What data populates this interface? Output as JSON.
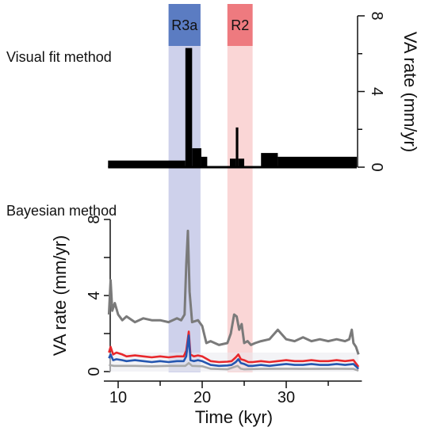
{
  "chart_data": [
    {
      "type": "bar",
      "title": "Visual fit method",
      "ylabel": "VA rate (mm/yr)",
      "ylim": [
        0,
        8
      ],
      "yticks": [
        0,
        4,
        8
      ],
      "x_unit": "kyr",
      "bars": [
        {
          "x0": 8.8,
          "x1": 18.0,
          "value": 0.35
        },
        {
          "x0": 18.0,
          "x1": 18.8,
          "value": 6.3
        },
        {
          "x0": 18.8,
          "x1": 19.9,
          "value": 1.0
        },
        {
          "x0": 19.9,
          "x1": 20.6,
          "value": 0.55
        },
        {
          "x0": 23.3,
          "x1": 24.0,
          "value": 0.45
        },
        {
          "x0": 24.0,
          "x1": 24.3,
          "value": 2.1
        },
        {
          "x0": 24.3,
          "x1": 25.0,
          "value": 0.45
        },
        {
          "x0": 27.0,
          "x1": 29.0,
          "value": 0.75
        },
        {
          "x0": 29.0,
          "x1": 38.4,
          "value": 0.55
        }
      ],
      "baseline_range": [
        8.8,
        38.4
      ],
      "color": "#000000"
    },
    {
      "type": "line",
      "title": "Bayesian method",
      "xlabel": "Time (kyr)",
      "ylabel": "VA rate (mm/yr)",
      "xlim": [
        8.3,
        39.0
      ],
      "ylim": [
        0,
        8
      ],
      "xticks": [
        10,
        20,
        30
      ],
      "xticks_minor": [
        15,
        25,
        35
      ],
      "yticks": [
        0,
        4,
        8
      ],
      "series": [
        {
          "color": "#7a7a7a",
          "x": [
            8.9,
            9.1,
            9.3,
            9.6,
            10,
            10.5,
            11,
            12,
            13,
            14,
            15,
            16,
            17,
            17.5,
            17.9,
            18.1,
            18.3,
            18.5,
            18.8,
            19.5,
            20,
            20.5,
            21,
            22,
            23,
            23.4,
            23.8,
            24.1,
            24.4,
            24.7,
            25,
            25.4,
            25.8,
            26.3,
            27,
            28,
            29,
            30,
            31,
            32,
            33,
            34,
            35,
            36,
            37,
            37.5,
            37.8,
            38.0,
            38.3,
            38.6
          ],
          "y": [
            3.0,
            4.8,
            3.2,
            3.6,
            3.0,
            2.7,
            2.9,
            2.6,
            2.8,
            2.7,
            2.7,
            2.6,
            2.8,
            2.7,
            3.0,
            5.6,
            7.4,
            4.2,
            2.6,
            2.7,
            2.4,
            1.5,
            1.6,
            1.4,
            1.5,
            2.0,
            3.0,
            2.9,
            2.2,
            2.5,
            1.5,
            1.6,
            1.4,
            1.5,
            1.6,
            1.7,
            2.2,
            1.7,
            1.6,
            1.8,
            1.6,
            1.7,
            1.6,
            1.7,
            1.6,
            1.7,
            2.2,
            1.5,
            1.3,
            0.9
          ]
        },
        {
          "color": "#e8282c",
          "x": [
            8.9,
            9.1,
            9.4,
            9.8,
            10.5,
            11,
            12,
            13,
            14,
            15,
            16,
            17,
            17.8,
            18.1,
            18.4,
            18.6,
            19,
            19.5,
            20,
            21,
            22,
            23,
            23.5,
            24.0,
            24.3,
            24.6,
            25,
            25.5,
            26,
            27,
            28,
            29,
            30,
            31,
            32,
            33,
            34,
            35,
            36,
            37,
            38,
            38.6
          ],
          "y": [
            1.0,
            1.3,
            0.9,
            1.0,
            0.9,
            0.8,
            0.85,
            0.8,
            0.75,
            0.8,
            0.75,
            0.8,
            0.8,
            1.1,
            2.1,
            0.9,
            0.8,
            0.85,
            0.8,
            0.55,
            0.5,
            0.52,
            0.55,
            0.75,
            0.9,
            0.65,
            0.6,
            0.5,
            0.5,
            0.55,
            0.5,
            0.55,
            0.6,
            0.55,
            0.55,
            0.6,
            0.55,
            0.55,
            0.6,
            0.55,
            0.6,
            0.25
          ]
        },
        {
          "color": "#2456b0",
          "x": [
            8.9,
            9.1,
            9.4,
            9.8,
            10.5,
            11,
            12,
            13,
            14,
            15,
            16,
            17,
            17.8,
            18.1,
            18.4,
            18.6,
            19,
            19.5,
            20,
            21,
            22,
            23,
            23.5,
            24.0,
            24.3,
            24.6,
            25,
            25.5,
            26,
            27,
            28,
            29,
            30,
            31,
            32,
            33,
            34,
            35,
            36,
            37,
            38,
            38.6
          ],
          "y": [
            0.7,
            0.9,
            0.6,
            0.65,
            0.6,
            0.55,
            0.6,
            0.55,
            0.5,
            0.55,
            0.5,
            0.55,
            0.55,
            0.8,
            1.9,
            0.6,
            0.55,
            0.6,
            0.55,
            0.35,
            0.3,
            0.32,
            0.35,
            0.5,
            0.65,
            0.45,
            0.4,
            0.3,
            0.3,
            0.35,
            0.3,
            0.35,
            0.4,
            0.35,
            0.35,
            0.4,
            0.35,
            0.35,
            0.4,
            0.35,
            0.4,
            0.15
          ]
        },
        {
          "color": "#a9a9a9",
          "x": [
            8.9,
            9.5,
            10,
            12,
            14,
            16,
            18,
            18.4,
            18.8,
            20,
            21,
            23,
            24.2,
            24.6,
            25,
            27,
            30,
            33,
            36,
            38,
            38.6
          ],
          "y": [
            0.35,
            0.3,
            0.3,
            0.3,
            0.28,
            0.3,
            0.3,
            0.45,
            0.3,
            0.28,
            0.15,
            0.12,
            0.3,
            0.15,
            0.12,
            0.14,
            0.15,
            0.14,
            0.15,
            0.14,
            0.05
          ]
        }
      ]
    }
  ],
  "highlights": [
    {
      "label": "R3a",
      "x0": 16.0,
      "x1": 19.8,
      "band_color": "#c5c9e8",
      "header_color": "#5b7cc2"
    },
    {
      "label": "R2",
      "x0": 23.0,
      "x1": 26.0,
      "band_color": "#f9cfcf",
      "header_color": "#ee7a7f"
    }
  ]
}
